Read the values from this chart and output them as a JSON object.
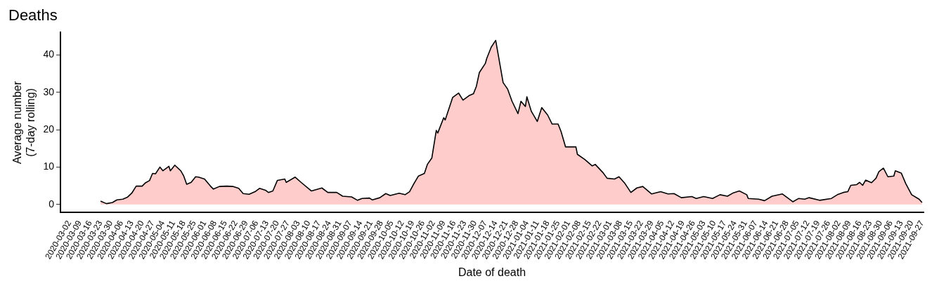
{
  "chart_data": {
    "type": "area",
    "title": "Deaths",
    "xlabel": "Date of death",
    "ylabel": "Average number\n(7-day rolling)",
    "color": "#ffcccc",
    "grid": false,
    "legend": false,
    "x": [
      "2020-03-23",
      "2020-03-27",
      "2020-03-31",
      "2020-04-03",
      "2020-04-07",
      "2020-04-10",
      "2020-04-13",
      "2020-04-16",
      "2020-04-20",
      "2020-04-22",
      "2020-04-25",
      "2020-04-27",
      "2020-04-29",
      "2020-05-02",
      "2020-05-04",
      "2020-05-08",
      "2020-05-09",
      "2020-05-12",
      "2020-05-16",
      "2020-05-18",
      "2020-05-20",
      "2020-05-23",
      "2020-05-26",
      "2020-05-28",
      "2020-06-01",
      "2020-06-05",
      "2020-06-07",
      "2020-06-11",
      "2020-06-16",
      "2020-06-20",
      "2020-06-24",
      "2020-06-27",
      "2020-07-01",
      "2020-07-05",
      "2020-07-08",
      "2020-07-12",
      "2020-07-14",
      "2020-07-17",
      "2020-07-20",
      "2020-07-25",
      "2020-07-26",
      "2020-08-01",
      "2020-08-05",
      "2020-08-12",
      "2020-08-19",
      "2020-08-23",
      "2020-08-29",
      "2020-09-02",
      "2020-09-08",
      "2020-09-12",
      "2020-09-15",
      "2020-09-20",
      "2020-09-22",
      "2020-09-27",
      "2020-10-01",
      "2020-10-04",
      "2020-10-10",
      "2020-10-14",
      "2020-10-17",
      "2020-10-20",
      "2020-10-23",
      "2020-10-27",
      "2020-10-29",
      "2020-11-01",
      "2020-11-04",
      "2020-11-05",
      "2020-11-09",
      "2020-11-10",
      "2020-11-15",
      "2020-11-19",
      "2020-11-22",
      "2020-11-26",
      "2020-11-29",
      "2020-12-01",
      "2020-12-03",
      "2020-12-07",
      "2020-12-08",
      "2020-12-11",
      "2020-12-14",
      "2020-12-16",
      "2020-12-19",
      "2020-12-22",
      "2020-12-25",
      "2020-12-29",
      "2020-12-31",
      "2021-01-03",
      "2021-01-04",
      "2021-01-07",
      "2021-01-11",
      "2021-01-14",
      "2021-01-18",
      "2021-01-21",
      "2021-01-25",
      "2021-01-27",
      "2021-01-30",
      "2021-02-06",
      "2021-02-07",
      "2021-02-12",
      "2021-02-17",
      "2021-02-19",
      "2021-02-24",
      "2021-02-27",
      "2021-03-04",
      "2021-03-07",
      "2021-03-11",
      "2021-03-15",
      "2021-03-19",
      "2021-03-23",
      "2021-03-29",
      "2021-04-04",
      "2021-04-09",
      "2021-04-13",
      "2021-04-18",
      "2021-04-25",
      "2021-04-28",
      "2021-05-03",
      "2021-05-09",
      "2021-05-14",
      "2021-05-19",
      "2021-05-23",
      "2021-05-27",
      "2021-06-01",
      "2021-06-02",
      "2021-06-09",
      "2021-06-13",
      "2021-06-18",
      "2021-06-25",
      "2021-06-29",
      "2021-07-02",
      "2021-07-06",
      "2021-07-10",
      "2021-07-13",
      "2021-07-20",
      "2021-07-28",
      "2021-08-01",
      "2021-08-05",
      "2021-08-08",
      "2021-08-10",
      "2021-08-14",
      "2021-08-16",
      "2021-08-18",
      "2021-08-20",
      "2021-08-24",
      "2021-08-27",
      "2021-08-29",
      "2021-09-01",
      "2021-09-04",
      "2021-09-08",
      "2021-09-09",
      "2021-09-13",
      "2021-09-16",
      "2021-09-20",
      "2021-09-25",
      "2021-09-27"
    ],
    "values": [
      0.9,
      0.2,
      0.5,
      1.2,
      1.4,
      1.9,
      3.0,
      4.9,
      4.9,
      5.7,
      6.4,
      8.3,
      8.2,
      10.0,
      9.0,
      10.2,
      9.0,
      10.5,
      9.0,
      7.6,
      5.4,
      5.9,
      7.4,
      7.3,
      6.8,
      4.9,
      4.1,
      4.8,
      4.9,
      4.8,
      4.3,
      2.9,
      2.7,
      3.4,
      4.3,
      3.8,
      3.2,
      3.6,
      6.4,
      6.8,
      5.9,
      7.3,
      5.9,
      3.6,
      4.4,
      3.2,
      3.2,
      2.2,
      2.0,
      1.1,
      1.6,
      1.7,
      1.2,
      1.8,
      2.9,
      2.4,
      3.0,
      2.6,
      3.4,
      5.6,
      7.6,
      8.3,
      10.7,
      12.4,
      19.8,
      19.1,
      23.2,
      22.6,
      28.6,
      29.8,
      27.9,
      29.1,
      29.6,
      31.6,
      35.3,
      37.7,
      39.1,
      42.1,
      43.9,
      39.4,
      32.6,
      30.9,
      27.6,
      24.3,
      27.6,
      26.2,
      28.8,
      24.9,
      22.2,
      25.9,
      23.9,
      21.5,
      21.5,
      19.5,
      15.4,
      15.4,
      13.4,
      12.0,
      10.3,
      10.7,
      8.6,
      7.0,
      6.8,
      7.4,
      5.6,
      3.2,
      4.4,
      4.8,
      2.8,
      3.4,
      2.8,
      2.9,
      1.8,
      2.1,
      1.6,
      2.1,
      1.6,
      2.6,
      2.2,
      3.1,
      3.6,
      2.6,
      1.6,
      1.4,
      1.0,
      2.2,
      2.8,
      1.6,
      0.7,
      1.6,
      1.4,
      1.8,
      1.1,
      1.6,
      2.6,
      3.2,
      3.4,
      5.1,
      5.3,
      5.9,
      5.1,
      6.5,
      5.8,
      7.0,
      8.8,
      9.7,
      7.4,
      7.6,
      9.0,
      8.4,
      5.6,
      2.6,
      1.4,
      0.5
    ],
    "xlim": [
      "2020-02-25",
      "2021-09-28"
    ],
    "xticks": [
      "2020-03-02",
      "2020-03-09",
      "2020-03-16",
      "2020-03-23",
      "2020-03-30",
      "2020-04-06",
      "2020-04-13",
      "2020-04-20",
      "2020-04-27",
      "2020-05-04",
      "2020-05-11",
      "2020-05-18",
      "2020-05-25",
      "2020-06-01",
      "2020-06-08",
      "2020-06-15",
      "2020-06-22",
      "2020-06-29",
      "2020-07-06",
      "2020-07-13",
      "2020-07-20",
      "2020-07-27",
      "2020-08-03",
      "2020-08-10",
      "2020-08-17",
      "2020-08-24",
      "2020-08-31",
      "2020-09-07",
      "2020-09-14",
      "2020-09-21",
      "2020-09-28",
      "2020-10-05",
      "2020-10-12",
      "2020-10-19",
      "2020-10-26",
      "2020-11-02",
      "2020-11-09",
      "2020-11-16",
      "2020-11-23",
      "2020-11-30",
      "2020-12-07",
      "2020-12-14",
      "2020-12-21",
      "2020-12-28",
      "2021-01-04",
      "2021-01-11",
      "2021-01-18",
      "2021-01-25",
      "2021-02-01",
      "2021-02-08",
      "2021-02-15",
      "2021-02-22",
      "2021-03-01",
      "2021-03-08",
      "2021-03-15",
      "2021-03-22",
      "2021-03-29",
      "2021-04-05",
      "2021-04-12",
      "2021-04-19",
      "2021-04-26",
      "2021-05-03",
      "2021-05-10",
      "2021-05-17",
      "2021-05-24",
      "2021-05-31",
      "2021-06-07",
      "2021-06-14",
      "2021-06-21",
      "2021-06-28",
      "2021-07-05",
      "2021-07-12",
      "2021-07-19",
      "2021-07-26",
      "2021-08-02",
      "2021-08-09",
      "2021-08-16",
      "2021-08-23",
      "2021-08-30",
      "2021-09-06",
      "2021-09-13",
      "2021-09-20",
      "2021-09-27"
    ],
    "ylim": [
      -2.2,
      46
    ],
    "yticks": [
      0,
      10,
      20,
      30,
      40
    ]
  }
}
